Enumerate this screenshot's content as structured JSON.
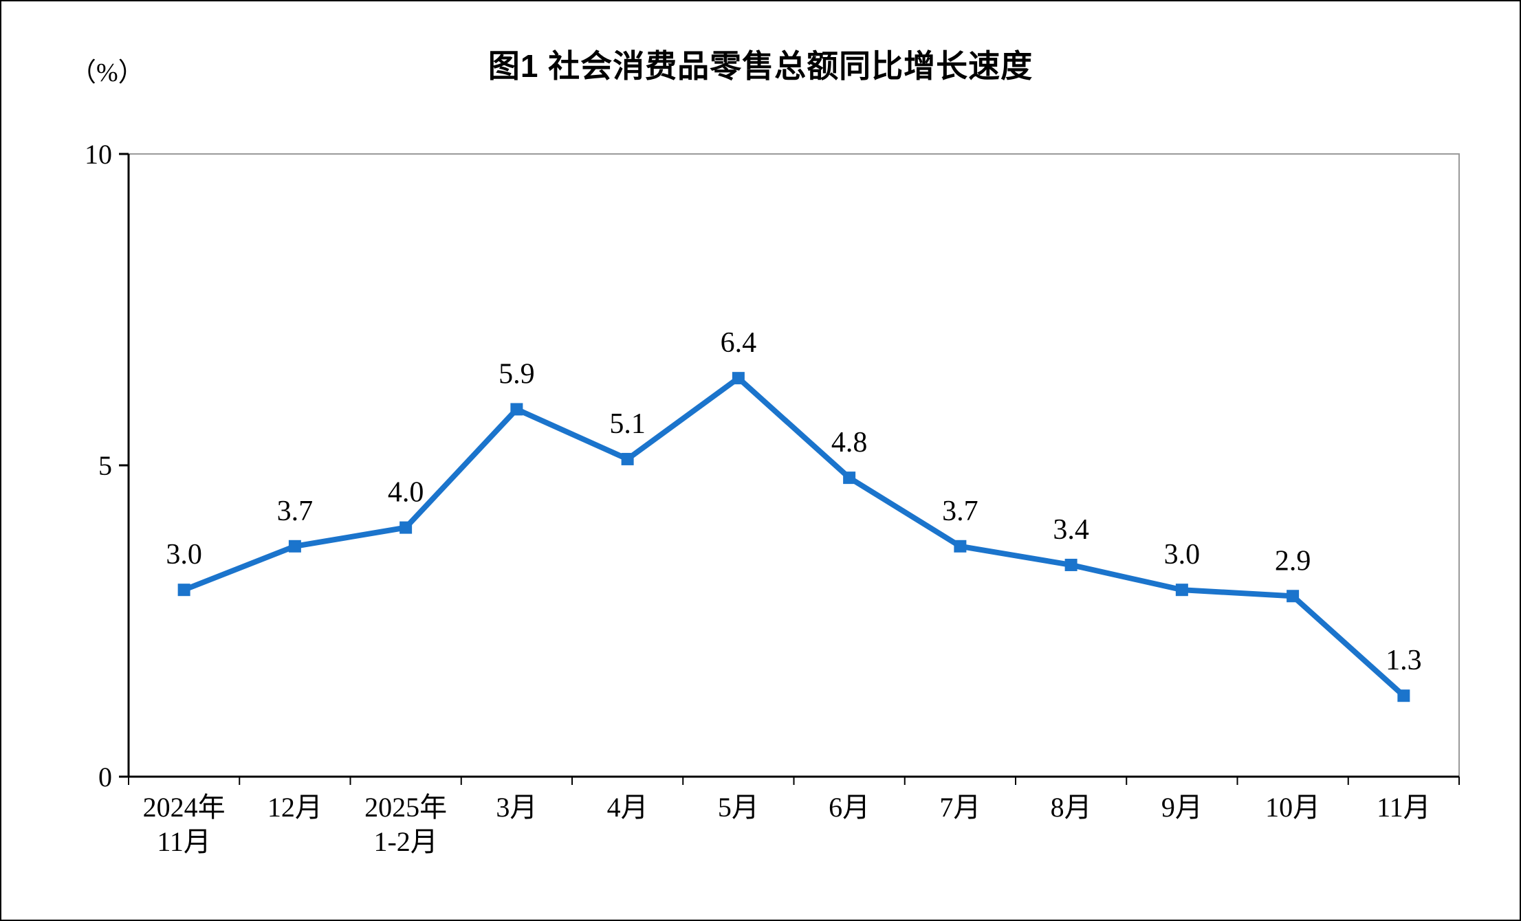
{
  "chart_data": {
    "type": "line",
    "title": "图1 社会消费品零售总额同比增长速度",
    "y_unit": "（%）",
    "categories": [
      [
        "2024年",
        "11月"
      ],
      [
        "12月"
      ],
      [
        "2025年",
        "1-2月"
      ],
      [
        "3月"
      ],
      [
        "4月"
      ],
      [
        "5月"
      ],
      [
        "6月"
      ],
      [
        "7月"
      ],
      [
        "8月"
      ],
      [
        "9月"
      ],
      [
        "10月"
      ],
      [
        "11月"
      ]
    ],
    "values": [
      3.0,
      3.7,
      4.0,
      5.9,
      5.1,
      6.4,
      4.8,
      3.7,
      3.4,
      3.0,
      2.9,
      1.3
    ],
    "ylim": [
      0,
      10
    ],
    "yticks": [
      0,
      5,
      10
    ],
    "grid": false,
    "legend": "none",
    "marker": "square",
    "line_color": "#1B74CC",
    "frame_color": "#9A9A9A",
    "axis_color": "#000000",
    "label_color": "#000000"
  }
}
